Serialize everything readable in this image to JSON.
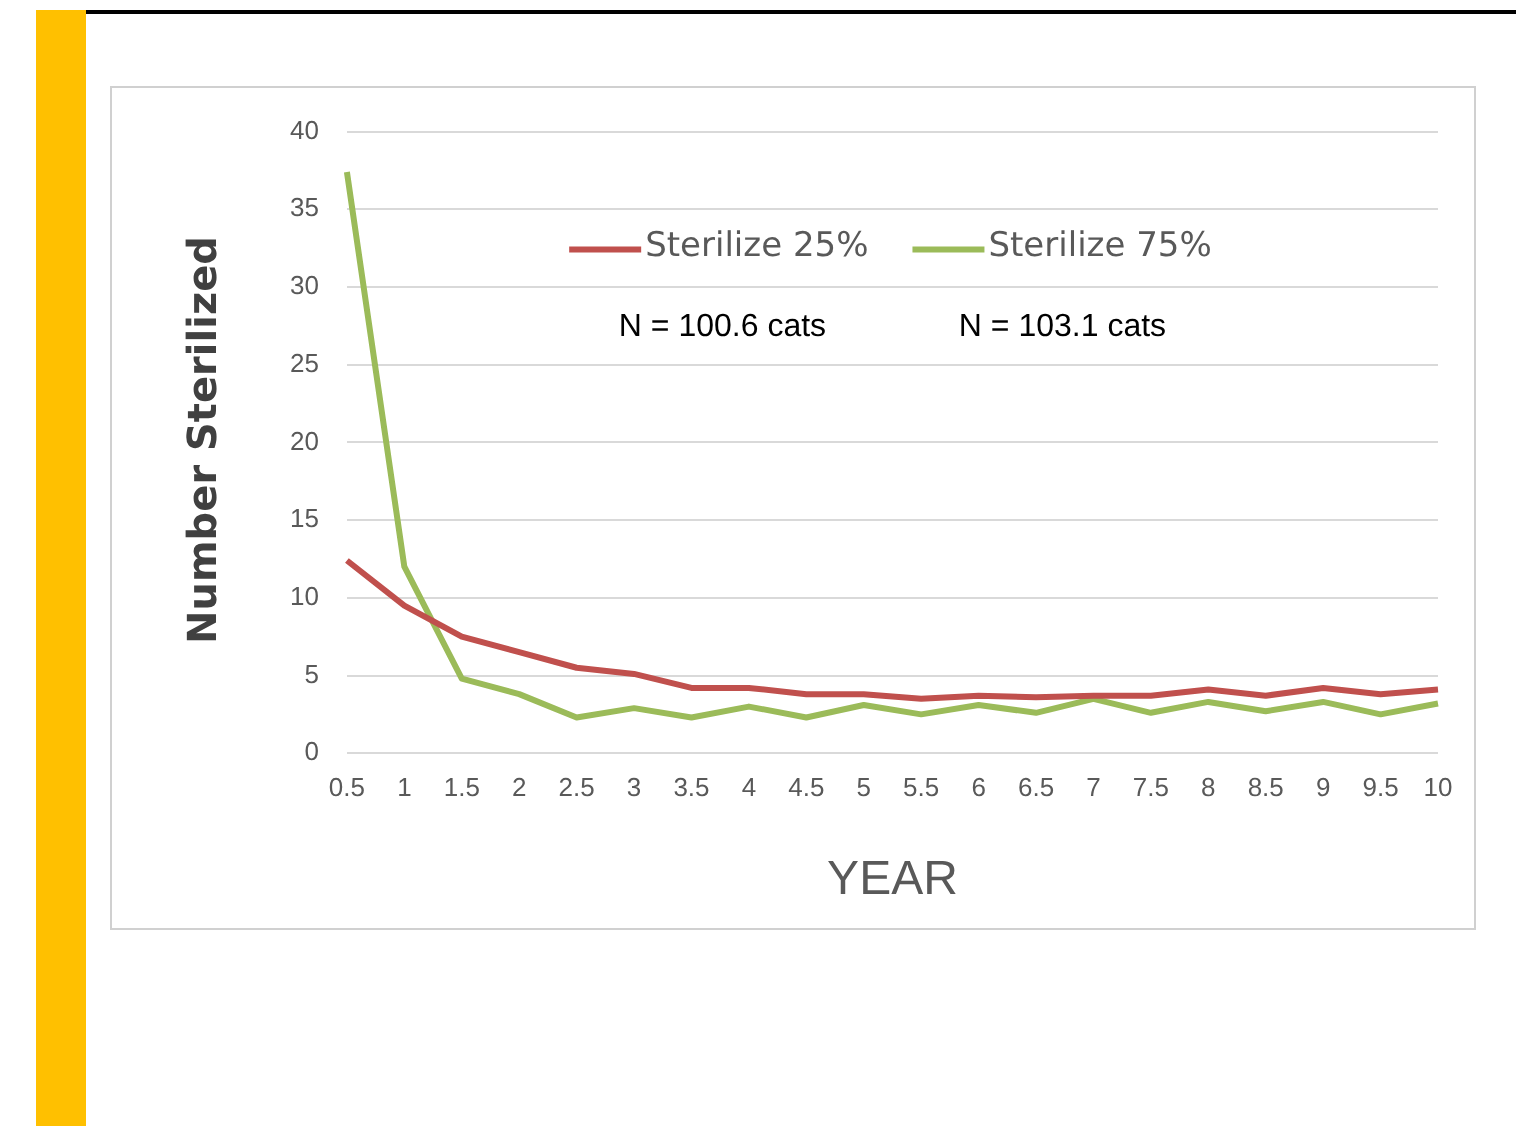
{
  "chart_data": {
    "type": "line",
    "xlabel": "YEAR",
    "ylabel": "Number Sterilized",
    "categories": [
      "0.5",
      "1",
      "1.5",
      "2",
      "2.5",
      "3",
      "3.5",
      "4",
      "4.5",
      "5",
      "5.5",
      "6",
      "6.5",
      "7",
      "7.5",
      "8",
      "8.5",
      "9",
      "9.5",
      "10"
    ],
    "series": [
      {
        "name": "Sterilize 25%",
        "color": "#c0504d",
        "values": [
          12.4,
          9.5,
          7.5,
          6.5,
          5.5,
          5.1,
          4.2,
          4.2,
          3.8,
          3.8,
          3.5,
          3.7,
          3.6,
          3.7,
          3.7,
          4.1,
          3.7,
          4.2,
          3.8,
          4.1
        ]
      },
      {
        "name": "Sterilize 75%",
        "color": "#9bbb59",
        "values": [
          37.4,
          12,
          4.8,
          3.8,
          2.3,
          2.9,
          2.3,
          3.0,
          2.3,
          3.1,
          2.5,
          3.1,
          2.6,
          3.5,
          2.6,
          3.3,
          2.7,
          3.3,
          2.5,
          3.2
        ]
      }
    ],
    "ylim": [
      0,
      40
    ],
    "yticks": [
      0,
      5,
      10,
      15,
      20,
      25,
      30,
      35,
      40
    ],
    "grid": "y",
    "legend": "top",
    "marker": "none",
    "line_style": "solid",
    "annotations": [
      "N = 100.6 cats",
      "N = 103.1 cats"
    ]
  }
}
